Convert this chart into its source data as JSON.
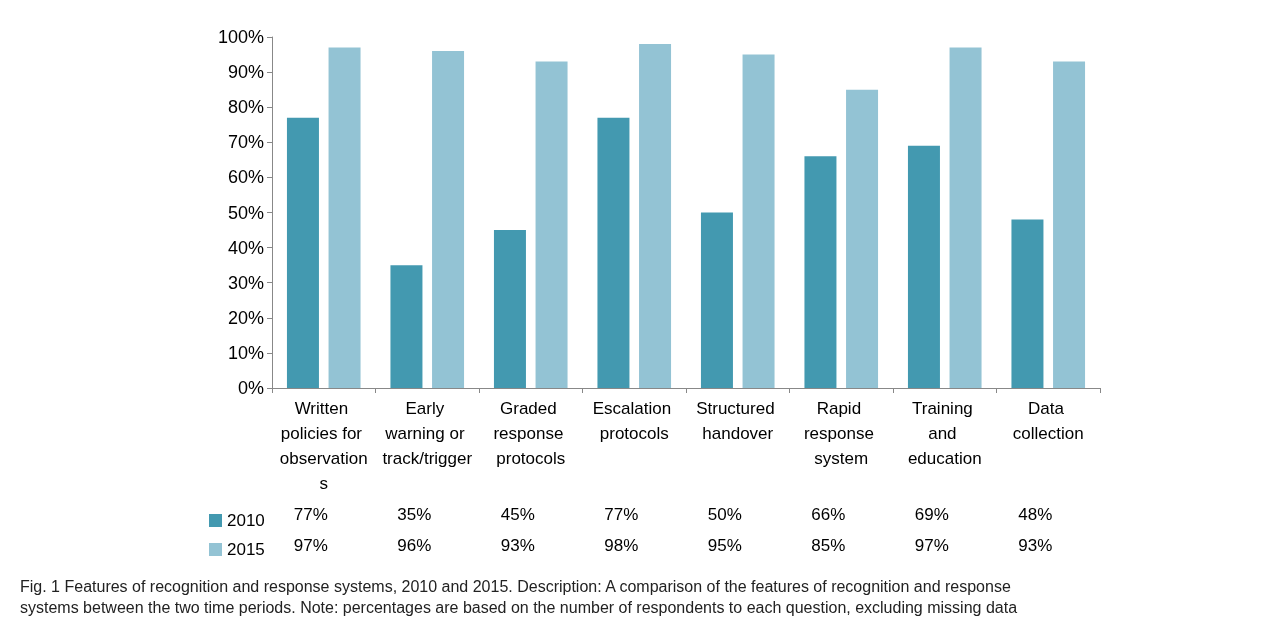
{
  "chart_data": {
    "type": "bar",
    "title": "Fig. 1 Features of recognition and response systems, 2010 and 2015.",
    "annotations": [
      "Description: A comparison of the features of recognition and response systems between the two time periods. Note: percentages are based on the number of respondents to each question, excluding missing data"
    ],
    "categories": [
      "Written policies for observations",
      "Early warning or track/trigger",
      "Graded response protocols",
      "Escalation protocols",
      "Structured handover",
      "Rapid response system",
      "Training and education",
      "Data collection"
    ],
    "series": [
      {
        "name": "2010",
        "color": "#4399b0",
        "values": [
          77,
          35,
          45,
          77,
          50,
          66,
          69,
          48
        ],
        "value_labels": [
          "77%",
          "35%",
          "45%",
          "77%",
          "50%",
          "66%",
          "69%",
          "48%"
        ]
      },
      {
        "name": "2015",
        "color": "#93c3d4",
        "values": [
          97,
          96,
          93,
          98,
          95,
          85,
          97,
          93
        ],
        "value_labels": [
          "97%",
          "96%",
          "93%",
          "98%",
          "95%",
          "85%",
          "97%",
          "93%"
        ]
      }
    ],
    "ylim": [
      0,
      100
    ],
    "yticks": [
      {
        "value": 0,
        "label": "0%"
      },
      {
        "value": 10,
        "label": "10%"
      },
      {
        "value": 20,
        "label": "20%"
      },
      {
        "value": 30,
        "label": "30%"
      },
      {
        "value": 40,
        "label": "40%"
      },
      {
        "value": 50,
        "label": "50%"
      },
      {
        "value": 60,
        "label": "60%"
      },
      {
        "value": 70,
        "label": "70%"
      },
      {
        "value": 80,
        "label": "80%"
      },
      {
        "value": 90,
        "label": "90%"
      },
      {
        "value": 100,
        "label": "100%"
      }
    ],
    "grid": false,
    "legend": "bottom left"
  }
}
